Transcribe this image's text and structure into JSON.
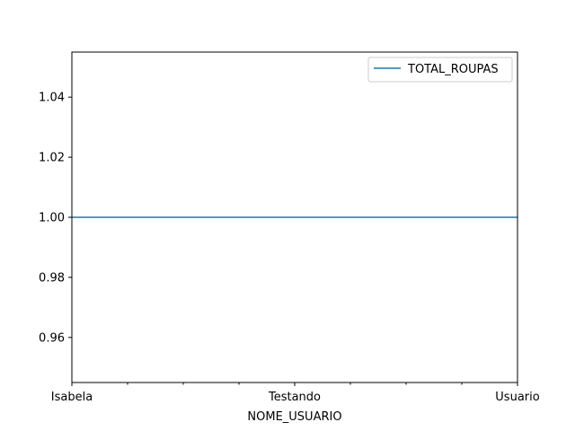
{
  "chart_data": {
    "type": "line",
    "title": "",
    "xlabel": "NOME_USUARIO",
    "ylabel": "",
    "x_tick_labels": [
      "Isabela",
      "Testando",
      "Usuario"
    ],
    "x_minor_ticks": 6,
    "x_range": [
      0,
      8
    ],
    "y_ticks": [
      "0.96",
      "0.98",
      "1.00",
      "1.02",
      "1.04"
    ],
    "ylim": [
      0.945,
      1.055
    ],
    "grid": false,
    "legend_position": "top-right",
    "series": [
      {
        "name": "TOTAL_ROUPAS",
        "color": "#1f77b4",
        "x": [
          "Isabela",
          "Testando",
          "Usuario"
        ],
        "values": [
          1,
          1,
          1
        ]
      }
    ]
  }
}
